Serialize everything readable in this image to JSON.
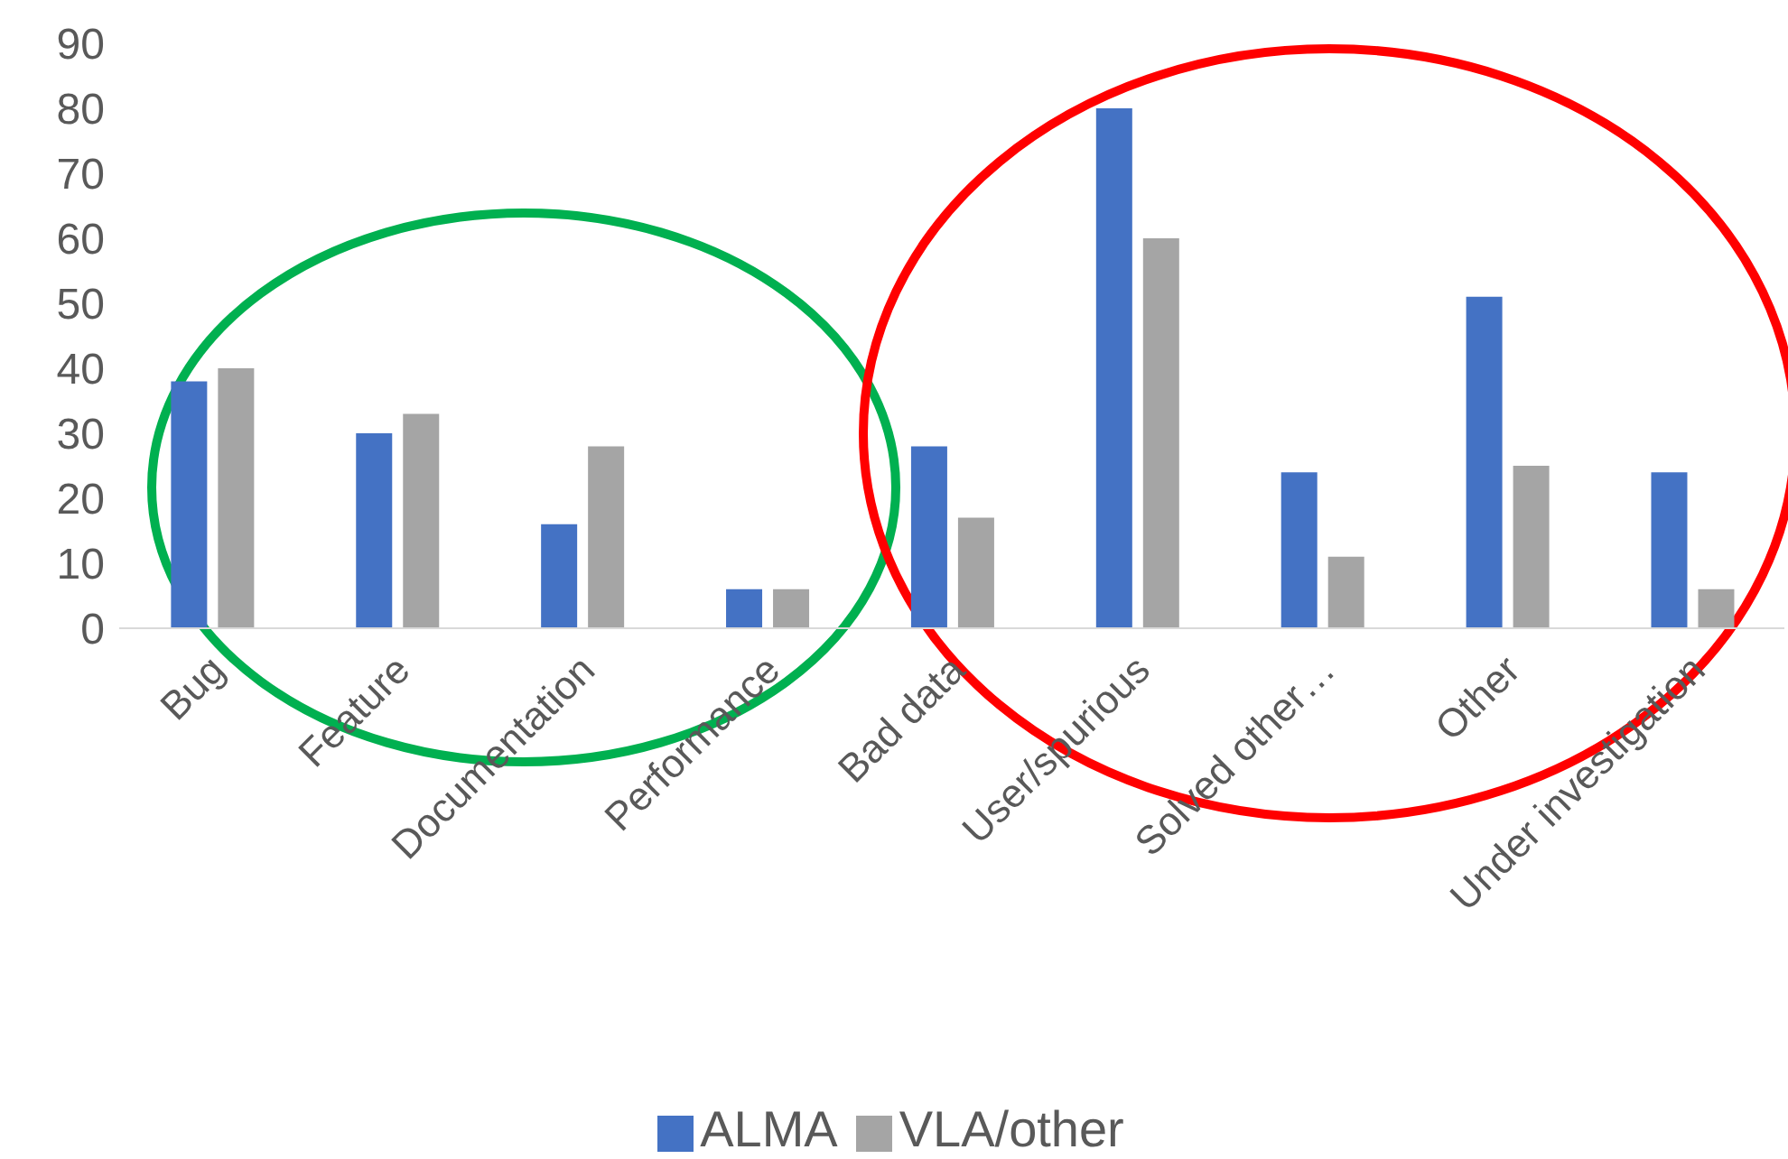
{
  "chart_data": {
    "type": "bar",
    "categories": [
      "Bug",
      "Feature",
      "Documentation",
      "Performance",
      "Bad data",
      "User/spurious",
      "Solved other…",
      "Other",
      "Under investigation"
    ],
    "series": [
      {
        "name": "ALMA",
        "color": "#4472c4",
        "values": [
          38,
          30,
          16,
          6,
          28,
          80,
          24,
          51,
          24
        ]
      },
      {
        "name": "VLA/other",
        "color": "#a5a5a5",
        "values": [
          40,
          33,
          28,
          6,
          17,
          60,
          11,
          25,
          6
        ]
      }
    ],
    "ylim": [
      0,
      90
    ],
    "yticks": [
      0,
      10,
      20,
      30,
      40,
      50,
      60,
      70,
      80,
      90
    ],
    "grid": false,
    "legend": "bottom"
  }
}
